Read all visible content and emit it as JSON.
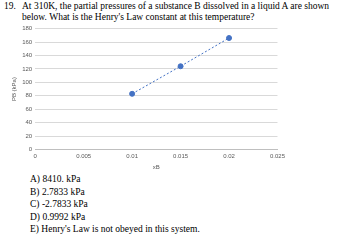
{
  "question": {
    "number": "19.",
    "text": "At 310K, the partial pressures of a substance B dissolved in a liquid A are shown below. What is the Henry's Law constant at this temperature?"
  },
  "chart_data": {
    "type": "scatter",
    "x_label": "xB",
    "y_label": "PB (kPa)",
    "x": [
      0.01,
      0.015,
      0.02
    ],
    "values": [
      83,
      124,
      166
    ],
    "color": "#4472c4",
    "marker": "circle",
    "line_style": "dotted",
    "xlim": [
      0,
      0.025
    ],
    "xticks": [
      0,
      0.005,
      0.01,
      0.015,
      0.02,
      0.025
    ],
    "ylim": [
      0,
      180
    ],
    "yticks": [
      0,
      20,
      40,
      60,
      80,
      100,
      120,
      140,
      160,
      180
    ],
    "grid": "y"
  },
  "options": [
    "A) 8410. kPa",
    "B) 2.7833 kPa",
    "C) -2.7833 kPa",
    "D) 0.9992 kPa",
    "E) Henry's Law is not obeyed in this system."
  ]
}
